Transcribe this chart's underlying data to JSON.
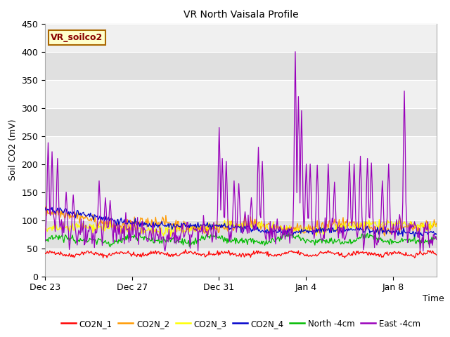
{
  "title": "VR North Vaisala Profile",
  "ylabel": "Soil CO2 (mV)",
  "xlabel": "Time",
  "annotation": "VR_soilco2",
  "ylim": [
    0,
    450
  ],
  "xtick_labels": [
    "Dec 23",
    "Dec 27",
    "Dec 31",
    "Jan 4",
    "Jan 8"
  ],
  "legend_labels": [
    "CO2N_1",
    "CO2N_2",
    "CO2N_3",
    "CO2N_4",
    "North -4cm",
    "East -4cm"
  ],
  "legend_colors": [
    "#ff0000",
    "#ff9900",
    "#ffff00",
    "#0000cc",
    "#00bb00",
    "#9900bb"
  ],
  "line_colors": {
    "CO2N_1": "#ff0000",
    "CO2N_2": "#ff9900",
    "CO2N_3": "#ffff00",
    "CO2N_4": "#0000cc",
    "North_4cm": "#00bb00",
    "East_4cm": "#9900bb"
  },
  "bg_color": "#ffffff",
  "plot_bg_light": "#f0f0f0",
  "plot_bg_dark": "#e0e0e0",
  "n_points": 500,
  "yticks": [
    0,
    50,
    100,
    150,
    200,
    250,
    300,
    350,
    400,
    450
  ],
  "xtick_positions": [
    0,
    4,
    8,
    12,
    16
  ],
  "xlim": [
    0,
    18
  ]
}
